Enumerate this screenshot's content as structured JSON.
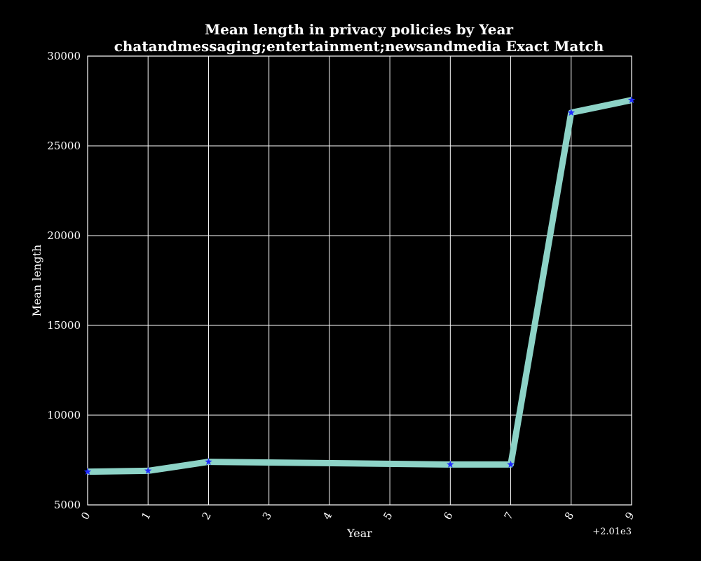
{
  "chart_data": {
    "type": "line",
    "title": "Mean length in privacy policies by Year",
    "subtitle": "chatandmessaging;entertainment;newsandmedia Exact Match",
    "xlabel": "Year",
    "ylabel": "Mean length",
    "x_offset_label": "+2.01e3",
    "xlim": [
      0,
      9
    ],
    "ylim": [
      5000,
      30000
    ],
    "x_ticks": [
      "0",
      "1",
      "2",
      "3",
      "4",
      "5",
      "6",
      "7",
      "8",
      "9"
    ],
    "y_ticks": [
      "5000",
      "10000",
      "15000",
      "20000",
      "25000",
      "30000"
    ],
    "grid": true,
    "series": [
      {
        "x": [
          0,
          1,
          2,
          6,
          7,
          8,
          9
        ],
        "y": [
          6850,
          6900,
          7400,
          7250,
          7250,
          26850,
          27550
        ],
        "line_color": "#8dd3c7",
        "marker": "star",
        "marker_color": "#1f2bff"
      }
    ],
    "colors": {
      "background": "#000000",
      "grid": "#ffffff",
      "text": "#ffffff"
    }
  }
}
